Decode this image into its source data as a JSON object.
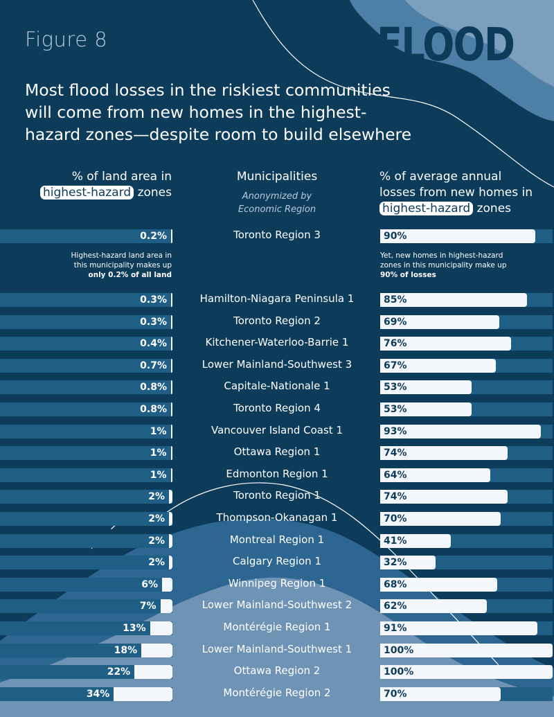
{
  "figure_label": "Figure 8",
  "hazard_word": "FLOOD",
  "headline": "Most flood losses in the riskiest communities will come from new homes in the highest-hazard zones—despite room to build elsewhere",
  "headers": {
    "left": {
      "line1": "% of land area in",
      "pill": "highest-hazard",
      "after": "zones"
    },
    "middle": {
      "title": "Municipalities",
      "subtitle_line1": "Anonymized by",
      "subtitle_line2": "Economic Region"
    },
    "right": {
      "line1": "% of average annual",
      "line2": "losses from new homes in",
      "pill": "highest-hazard",
      "after": "zones"
    }
  },
  "notes": {
    "left_line1": "Highest-hazard land area in",
    "left_line2": "this municipality makes up",
    "left_bold": "only 0.2% of all land",
    "right_line1": "Yet, new homes in highest-hazard",
    "right_line2": "zones in this municipality make up",
    "right_bold": "90% of losses"
  },
  "colors": {
    "background": "#0d3b5a",
    "track": "#1f5f86",
    "bar": "#f3f6fb",
    "wave_mid": "#4e7fa7",
    "wave_light": "#8eabc6"
  },
  "chart_data": {
    "type": "bar",
    "categories": [
      "Toronto Region 3",
      "Hamilton-Niagara Peninsula 1",
      "Toronto Region 2",
      "Kitchener-Waterloo-Barrie 1",
      "Lower Mainland-Southwest 3",
      "Capitale-Nationale 1",
      "Toronto Region 4",
      "Vancouver Island Coast 1",
      "Ottawa Region 1",
      "Edmonton Region 1",
      "Toronto Region 1",
      "Thompson-Okanagan 1",
      "Montreal Region 1",
      "Calgary Region 1",
      "Winnipeg Region 1",
      "Lower Mainland-Southwest 2",
      "Montérégie Region 1",
      "Lower Mainland-Southwest 1",
      "Ottawa Region 2",
      "Montérégie Region 2"
    ],
    "series": [
      {
        "name": "% of land area in highest-hazard zones",
        "values": [
          0.2,
          0.3,
          0.3,
          0.4,
          0.7,
          0.8,
          0.8,
          1,
          1,
          1,
          2,
          2,
          2,
          2,
          6,
          7,
          13,
          18,
          22,
          34
        ],
        "labels": [
          "0.2%",
          "0.3%",
          "0.3%",
          "0.4%",
          "0.7%",
          "0.8%",
          "0.8%",
          "1%",
          "1%",
          "1%",
          "2%",
          "2%",
          "2%",
          "2%",
          "6%",
          "7%",
          "13%",
          "18%",
          "22%",
          "34%"
        ]
      },
      {
        "name": "% of average annual losses from new homes in highest-hazard zones",
        "values": [
          90,
          85,
          69,
          76,
          67,
          53,
          53,
          93,
          74,
          64,
          74,
          70,
          41,
          32,
          68,
          62,
          91,
          100,
          100,
          70
        ],
        "labels": [
          "90%",
          "85%",
          "69%",
          "76%",
          "67%",
          "53%",
          "53%",
          "93%",
          "74%",
          "64%",
          "74%",
          "70%",
          "41%",
          "32%",
          "68%",
          "62%",
          "91%",
          "100%",
          "100%",
          "70%"
        ]
      }
    ]
  }
}
